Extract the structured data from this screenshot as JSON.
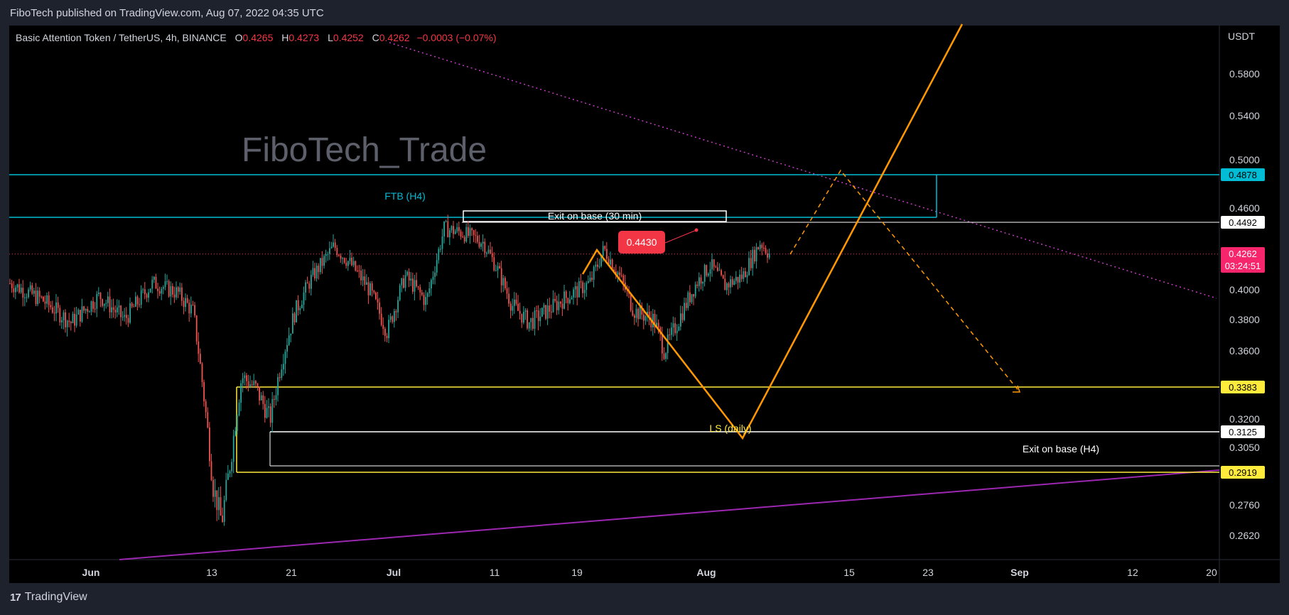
{
  "header": {
    "published_text": "FiboTech published on TradingView.com, Aug 07, 2022 04:35 UTC"
  },
  "footer": {
    "logo_text": "TradingView"
  },
  "legend": {
    "symbol": "Basic Attention Token / TetherUS, 4h, BINANCE",
    "open_label": "O",
    "open": "0.4265",
    "high_label": "H",
    "high": "0.4273",
    "low_label": "L",
    "low": "0.4252",
    "close_label": "C",
    "close": "0.4262",
    "change": "−0.0003 (−0.07%)"
  },
  "watermark": "FiboTech_Trade",
  "chart_data": {
    "type": "candlestick",
    "currency_label": "USDT",
    "y_ticks": [
      "0.5800",
      "0.5400",
      "0.5000",
      "0.4600",
      "0.4000",
      "0.3800",
      "0.3600",
      "0.3200",
      "0.3050",
      "0.2760",
      "0.2620"
    ],
    "x_ticks": [
      "Jun",
      "13",
      "21",
      "Jul",
      "11",
      "19",
      "Aug",
      "15",
      "23",
      "Sep",
      "12",
      "20"
    ],
    "price_labels": [
      {
        "value": "0.4878",
        "bg": "#00bcd4",
        "fg": "#000000"
      },
      {
        "value": "0.4492",
        "bg": "#ffffff",
        "fg": "#000000"
      },
      {
        "value": "0.4262",
        "bg": "#f7256b",
        "fg": "#ffffff"
      },
      {
        "value": "0.3383",
        "bg": "#ffeb3b",
        "fg": "#000000"
      },
      {
        "value": "0.3125",
        "bg": "#ffffff",
        "fg": "#000000"
      },
      {
        "value": "0.2919",
        "bg": "#ffeb3b",
        "fg": "#000000"
      }
    ],
    "countdown": "03:24:51",
    "annotations": {
      "ftb": "FTB (H4)",
      "exit_base_30": "Exit on base (30 min)",
      "exit_base_h4": "Exit on base (H4)",
      "ls_daily": "LS (daily)",
      "callout": "0.4430"
    },
    "close_price": 0.4262,
    "colors": {
      "up": "#26a69a",
      "down": "#ef5350",
      "zone_cyan": "#00bcd4",
      "zone_yellow": "#ffeb3b",
      "pattern": "#ff9800",
      "trend": "#9c27b0"
    }
  }
}
